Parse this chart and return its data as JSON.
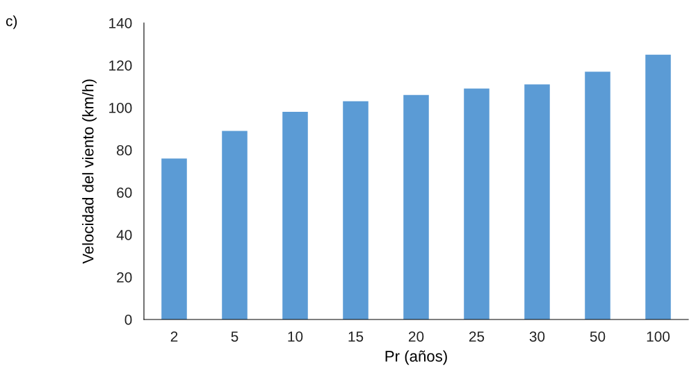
{
  "chart_data": {
    "type": "bar",
    "xlabel": "Pr (años)",
    "ylabel": "Velocidad del viento (km/h)",
    "annotations": [
      "c)"
    ],
    "categories": [
      "2",
      "5",
      "10",
      "15",
      "20",
      "25",
      "30",
      "50",
      "100"
    ],
    "values": [
      76,
      89,
      98,
      103,
      106,
      109,
      111,
      117,
      125
    ],
    "color": "#5b9bd5",
    "ylim": [
      0,
      140
    ],
    "yticks": [
      0,
      20,
      40,
      60,
      80,
      100,
      120,
      140
    ]
  }
}
